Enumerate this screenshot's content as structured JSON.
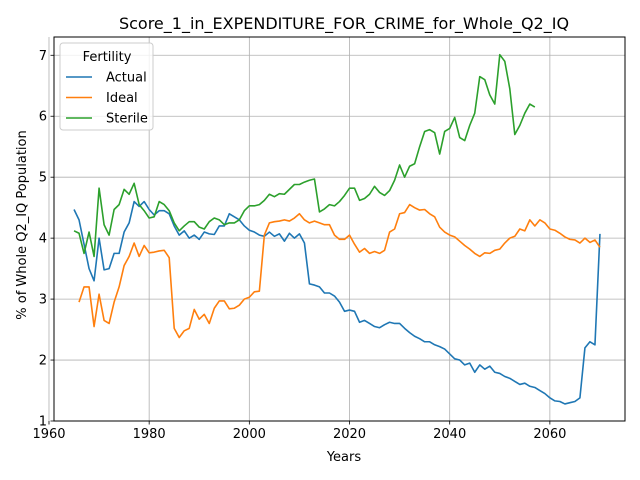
{
  "chart_data": {
    "type": "line",
    "title": "Score_1_in_EXPENDITURE_FOR_CRIME_for_Whole_Q2_IQ",
    "xlabel": "Years",
    "ylabel": "% of Whole Q2_IQ Population",
    "xlim": [
      1961,
      2075
    ],
    "ylim": [
      1,
      7.3
    ],
    "xticks": [
      1960,
      1980,
      2000,
      2020,
      2040,
      2060
    ],
    "yticks": [
      1,
      2,
      3,
      4,
      5,
      6,
      7
    ],
    "grid": true,
    "legend": {
      "title": "Fertility",
      "placement": "top-left"
    },
    "series": [
      {
        "name": "Actual",
        "color": "#1f77b4",
        "x": [
          1965,
          1966,
          1967,
          1968,
          1969,
          1970,
          1971,
          1972,
          1973,
          1974,
          1975,
          1976,
          1977,
          1978,
          1979,
          1980,
          1981,
          1982,
          1983,
          1984,
          1985,
          1986,
          1987,
          1988,
          1989,
          1990,
          1991,
          1992,
          1993,
          1994,
          1995,
          1996,
          1997,
          1998,
          1999,
          2000,
          2001,
          2002,
          2003,
          2004,
          2005,
          2006,
          2007,
          2008,
          2009,
          2010,
          2011,
          2012,
          2013,
          2014,
          2015,
          2016,
          2017,
          2018,
          2019,
          2020,
          2021,
          2022,
          2023,
          2024,
          2025,
          2026,
          2027,
          2028,
          2029,
          2030,
          2031,
          2032,
          2033,
          2034,
          2035,
          2036,
          2037,
          2038,
          2039,
          2040,
          2041,
          2042,
          2043,
          2044,
          2045,
          2046,
          2047,
          2048,
          2049,
          2050,
          2051,
          2052,
          2053,
          2054,
          2055,
          2056,
          2057,
          2058,
          2059,
          2060,
          2061,
          2062,
          2063,
          2064,
          2065,
          2066,
          2067,
          2068,
          2069,
          2070
        ],
        "y": [
          4.47,
          4.3,
          3.9,
          3.5,
          3.3,
          4.0,
          3.48,
          3.5,
          3.75,
          3.75,
          4.1,
          4.25,
          4.6,
          4.52,
          4.6,
          4.47,
          4.38,
          4.45,
          4.45,
          4.4,
          4.2,
          4.05,
          4.12,
          4.0,
          4.05,
          3.98,
          4.1,
          4.07,
          4.06,
          4.2,
          4.2,
          4.4,
          4.35,
          4.3,
          4.2,
          4.13,
          4.1,
          4.05,
          4.03,
          4.1,
          4.03,
          4.07,
          3.95,
          4.08,
          4.0,
          4.07,
          3.92,
          3.25,
          3.23,
          3.2,
          3.1,
          3.1,
          3.05,
          2.95,
          2.8,
          2.82,
          2.8,
          2.62,
          2.65,
          2.6,
          2.55,
          2.53,
          2.58,
          2.62,
          2.6,
          2.6,
          2.52,
          2.45,
          2.39,
          2.35,
          2.3,
          2.3,
          2.25,
          2.22,
          2.18,
          2.1,
          2.02,
          2.0,
          1.92,
          1.95,
          1.8,
          1.92,
          1.85,
          1.9,
          1.8,
          1.78,
          1.73,
          1.7,
          1.65,
          1.6,
          1.62,
          1.57,
          1.55,
          1.5,
          1.45,
          1.38,
          1.33,
          1.32,
          1.28,
          1.3,
          1.32,
          1.38,
          2.2,
          2.3,
          2.25,
          4.07
        ]
      },
      {
        "name": "Ideal",
        "color": "#ff7f0e",
        "x": [
          1966,
          1967,
          1968,
          1969,
          1970,
          1971,
          1972,
          1973,
          1974,
          1975,
          1976,
          1977,
          1978,
          1979,
          1980,
          1981,
          1982,
          1983,
          1984,
          1985,
          1986,
          1987,
          1988,
          1989,
          1990,
          1991,
          1992,
          1993,
          1994,
          1995,
          1996,
          1997,
          1998,
          1999,
          2000,
          2001,
          2002,
          2003,
          2004,
          2005,
          2006,
          2007,
          2008,
          2009,
          2010,
          2011,
          2012,
          2013,
          2014,
          2015,
          2016,
          2017,
          2018,
          2019,
          2020,
          2021,
          2022,
          2023,
          2024,
          2025,
          2026,
          2027,
          2028,
          2029,
          2030,
          2031,
          2032,
          2033,
          2034,
          2035,
          2036,
          2037,
          2038,
          2039,
          2040,
          2041,
          2042,
          2043,
          2044,
          2045,
          2046,
          2047,
          2048,
          2049,
          2050,
          2051,
          2052,
          2053,
          2054,
          2055,
          2056,
          2057,
          2058,
          2059,
          2060,
          2061,
          2062,
          2063,
          2064,
          2065,
          2066,
          2067,
          2068,
          2069,
          2070
        ],
        "y": [
          2.95,
          3.2,
          3.2,
          2.55,
          3.08,
          2.65,
          2.6,
          2.95,
          3.2,
          3.55,
          3.7,
          3.92,
          3.7,
          3.88,
          3.76,
          3.77,
          3.79,
          3.8,
          3.68,
          2.52,
          2.37,
          2.48,
          2.52,
          2.83,
          2.67,
          2.75,
          2.6,
          2.85,
          2.97,
          2.97,
          2.84,
          2.85,
          2.9,
          3.0,
          3.03,
          3.12,
          3.13,
          4.05,
          4.25,
          4.27,
          4.28,
          4.3,
          4.28,
          4.33,
          4.4,
          4.3,
          4.25,
          4.28,
          4.25,
          4.22,
          4.22,
          4.05,
          3.98,
          3.98,
          4.05,
          3.9,
          3.77,
          3.83,
          3.75,
          3.78,
          3.75,
          3.8,
          4.1,
          4.15,
          4.4,
          4.42,
          4.55,
          4.5,
          4.46,
          4.47,
          4.4,
          4.35,
          4.18,
          4.1,
          4.05,
          4.02,
          3.95,
          3.88,
          3.82,
          3.75,
          3.7,
          3.76,
          3.75,
          3.8,
          3.82,
          3.92,
          4.0,
          4.03,
          4.15,
          4.12,
          4.3,
          4.2,
          4.3,
          4.25,
          4.15,
          4.13,
          4.08,
          4.02,
          3.98,
          3.97,
          3.92,
          4.0,
          3.93,
          3.97,
          3.85
        ]
      },
      {
        "name": "Sterile",
        "color": "#2ca02c",
        "x": [
          1965,
          1966,
          1967,
          1968,
          1969,
          1970,
          1971,
          1972,
          1973,
          1974,
          1975,
          1976,
          1977,
          1978,
          1979,
          1980,
          1981,
          1982,
          1983,
          1984,
          1985,
          1986,
          1987,
          1988,
          1989,
          1990,
          1991,
          1992,
          1993,
          1994,
          1995,
          1996,
          1997,
          1998,
          1999,
          2000,
          2001,
          2002,
          2003,
          2004,
          2005,
          2006,
          2007,
          2008,
          2009,
          2010,
          2011,
          2012,
          2013,
          2014,
          2015,
          2016,
          2017,
          2018,
          2019,
          2020,
          2021,
          2022,
          2023,
          2024,
          2025,
          2026,
          2027,
          2028,
          2029,
          2030,
          2031,
          2032,
          2033,
          2034,
          2035,
          2036,
          2037,
          2038,
          2039,
          2040,
          2041,
          2042,
          2043,
          2044,
          2045,
          2046,
          2047,
          2048,
          2049,
          2050,
          2051,
          2052,
          2053,
          2054,
          2055,
          2056,
          2057
        ],
        "y": [
          4.12,
          4.08,
          3.75,
          4.1,
          3.7,
          4.82,
          4.22,
          4.05,
          4.47,
          4.55,
          4.8,
          4.72,
          4.9,
          4.55,
          4.45,
          4.33,
          4.35,
          4.6,
          4.55,
          4.45,
          4.25,
          4.12,
          4.2,
          4.27,
          4.27,
          4.18,
          4.15,
          4.27,
          4.33,
          4.3,
          4.22,
          4.25,
          4.25,
          4.3,
          4.45,
          4.53,
          4.53,
          4.55,
          4.62,
          4.72,
          4.68,
          4.73,
          4.72,
          4.8,
          4.88,
          4.88,
          4.92,
          4.95,
          4.97,
          4.43,
          4.48,
          4.55,
          4.53,
          4.6,
          4.7,
          4.82,
          4.82,
          4.62,
          4.65,
          4.72,
          4.85,
          4.75,
          4.7,
          4.78,
          4.95,
          5.2,
          5.0,
          5.18,
          5.22,
          5.5,
          5.75,
          5.78,
          5.73,
          5.38,
          5.75,
          5.8,
          5.98,
          5.65,
          5.6,
          5.85,
          6.05,
          6.65,
          6.6,
          6.35,
          6.2,
          7.01,
          6.9,
          6.45,
          5.7,
          5.85,
          6.05,
          6.2,
          6.15
        ]
      }
    ]
  }
}
